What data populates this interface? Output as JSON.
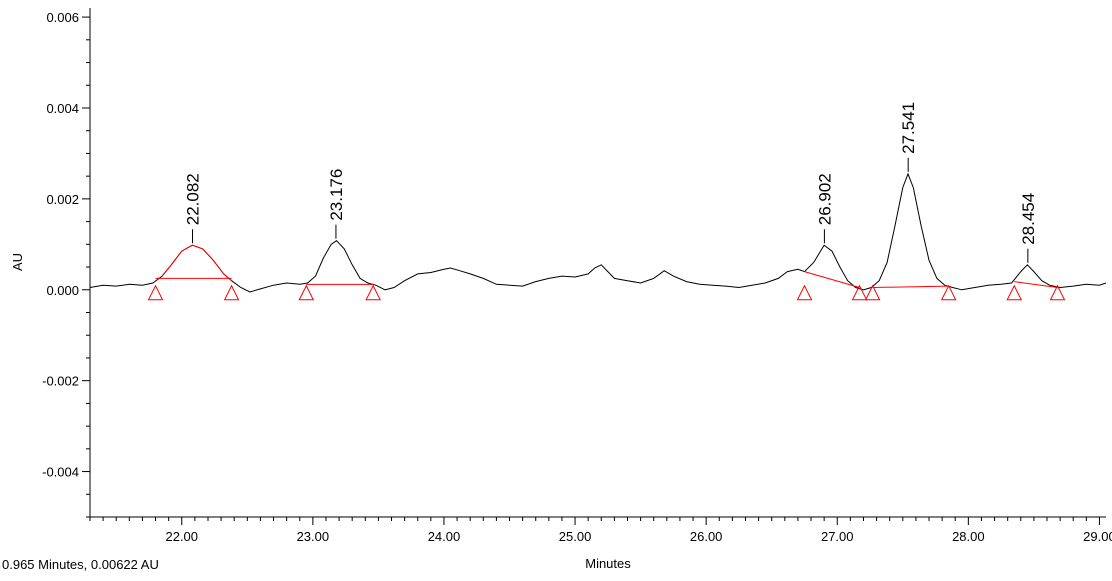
{
  "status_text": "0.965 Minutes, 0.00622 AU",
  "chart_data": {
    "type": "line",
    "xlabel": "Minutes",
    "ylabel": "AU",
    "xlim": [
      21.3,
      29.05
    ],
    "ylim": [
      -0.005,
      0.0062
    ],
    "x_ticks": [
      22.0,
      23.0,
      24.0,
      25.0,
      26.0,
      27.0,
      28.0,
      29.0
    ],
    "x_tick_labels": [
      "22.00",
      "23.00",
      "24.00",
      "25.00",
      "26.00",
      "27.00",
      "28.00",
      "29.00"
    ],
    "y_ticks": [
      -0.004,
      -0.002,
      0.0,
      0.002,
      0.004,
      0.006
    ],
    "y_tick_labels": [
      "-0.004",
      "-0.002",
      "0.000",
      "0.002",
      "0.004",
      "0.006"
    ],
    "grid": false,
    "trace_color": "#000000",
    "integration_color": "#ff0000",
    "series": [
      {
        "points": [
          [
            21.3,
            5e-05
          ],
          [
            21.4,
            0.0001
          ],
          [
            21.5,
            8e-05
          ],
          [
            21.6,
            0.00012
          ],
          [
            21.7,
            0.0001
          ],
          [
            21.78,
            0.00015
          ],
          [
            21.85,
            0.0003
          ],
          [
            21.92,
            0.00055
          ],
          [
            22.0,
            0.00085
          ],
          [
            22.08,
            0.00098
          ],
          [
            22.16,
            0.0009
          ],
          [
            22.24,
            0.00065
          ],
          [
            22.32,
            0.00035
          ],
          [
            22.38,
            0.0002
          ],
          [
            22.45,
            5e-05
          ],
          [
            22.52,
            -5e-05
          ],
          [
            22.6,
            2e-05
          ],
          [
            22.7,
            0.0001
          ],
          [
            22.8,
            0.00015
          ],
          [
            22.9,
            0.00012
          ],
          [
            22.96,
            0.00015
          ],
          [
            23.02,
            0.0003
          ],
          [
            23.08,
            0.0007
          ],
          [
            23.14,
            0.001
          ],
          [
            23.18,
            0.00108
          ],
          [
            23.24,
            0.0009
          ],
          [
            23.3,
            0.00055
          ],
          [
            23.36,
            0.00025
          ],
          [
            23.42,
            0.00015
          ],
          [
            23.48,
            0.0001
          ],
          [
            23.55,
            0.0
          ],
          [
            23.62,
            5e-05
          ],
          [
            23.7,
            0.0002
          ],
          [
            23.8,
            0.00035
          ],
          [
            23.9,
            0.00038
          ],
          [
            24.0,
            0.00045
          ],
          [
            24.05,
            0.00048
          ],
          [
            24.12,
            0.00042
          ],
          [
            24.2,
            0.00035
          ],
          [
            24.3,
            0.00025
          ],
          [
            24.4,
            0.00012
          ],
          [
            24.5,
            0.0001
          ],
          [
            24.6,
            8e-05
          ],
          [
            24.7,
            0.00018
          ],
          [
            24.8,
            0.00025
          ],
          [
            24.9,
            0.0003
          ],
          [
            25.0,
            0.00028
          ],
          [
            25.1,
            0.00035
          ],
          [
            25.15,
            0.00048
          ],
          [
            25.2,
            0.00055
          ],
          [
            25.25,
            0.0004
          ],
          [
            25.3,
            0.00025
          ],
          [
            25.4,
            0.0002
          ],
          [
            25.5,
            0.00015
          ],
          [
            25.6,
            0.00025
          ],
          [
            25.68,
            0.00042
          ],
          [
            25.75,
            0.0003
          ],
          [
            25.85,
            0.00018
          ],
          [
            25.95,
            0.00012
          ],
          [
            26.05,
            0.0001
          ],
          [
            26.15,
            8e-05
          ],
          [
            26.25,
            5e-05
          ],
          [
            26.35,
            0.0001
          ],
          [
            26.45,
            0.00015
          ],
          [
            26.55,
            0.00025
          ],
          [
            26.62,
            0.0004
          ],
          [
            26.7,
            0.00045
          ],
          [
            26.75,
            0.0004
          ],
          [
            26.82,
            0.0006
          ],
          [
            26.9,
            0.00098
          ],
          [
            26.96,
            0.00085
          ],
          [
            27.02,
            0.0005
          ],
          [
            27.08,
            0.0002
          ],
          [
            27.14,
            5e-05
          ],
          [
            27.2,
            0.0
          ],
          [
            27.26,
            5e-05
          ],
          [
            27.32,
            0.0002
          ],
          [
            27.38,
            0.0006
          ],
          [
            27.44,
            0.0014
          ],
          [
            27.5,
            0.00225
          ],
          [
            27.54,
            0.00255
          ],
          [
            27.58,
            0.00225
          ],
          [
            27.64,
            0.0014
          ],
          [
            27.7,
            0.00065
          ],
          [
            27.76,
            0.00025
          ],
          [
            27.82,
            0.0001
          ],
          [
            27.88,
            5e-05
          ],
          [
            27.95,
            0.0
          ],
          [
            28.05,
            5e-05
          ],
          [
            28.15,
            0.0001
          ],
          [
            28.25,
            0.00012
          ],
          [
            28.33,
            0.00015
          ],
          [
            28.4,
            0.0004
          ],
          [
            28.45,
            0.00055
          ],
          [
            28.5,
            0.0004
          ],
          [
            28.56,
            0.0002
          ],
          [
            28.62,
            0.0001
          ],
          [
            28.7,
            5e-05
          ],
          [
            28.8,
            8e-05
          ],
          [
            28.9,
            0.00012
          ],
          [
            29.0,
            0.0001
          ],
          [
            29.05,
            0.00015
          ]
        ]
      }
    ],
    "peaks": [
      {
        "label": "22.082",
        "x": 22.082,
        "y": 0.00098
      },
      {
        "label": "23.176",
        "x": 23.176,
        "y": 0.00108
      },
      {
        "label": "26.902",
        "x": 26.902,
        "y": 0.00098
      },
      {
        "label": "27.541",
        "x": 27.541,
        "y": 0.00255
      },
      {
        "label": "28.454",
        "x": 28.454,
        "y": 0.00055
      }
    ],
    "baselines": [
      {
        "x1": 21.8,
        "y1": 0.00025,
        "x2": 22.38,
        "y2": 0.00025
      },
      {
        "x1": 22.95,
        "y1": 0.00012,
        "x2": 23.46,
        "y2": 0.00012
      },
      {
        "x1": 26.75,
        "y1": 0.0004,
        "x2": 27.17,
        "y2": 5e-05
      },
      {
        "x1": 27.27,
        "y1": 5e-05,
        "x2": 27.85,
        "y2": 8e-05
      },
      {
        "x1": 28.35,
        "y1": 0.00018,
        "x2": 28.68,
        "y2": 5e-05
      }
    ],
    "markers": [
      21.8,
      22.38,
      22.95,
      23.46,
      26.75,
      27.17,
      27.27,
      27.85,
      28.35,
      28.68
    ],
    "highlighted_peak_ranges": [
      [
        21.8,
        22.38
      ]
    ]
  }
}
